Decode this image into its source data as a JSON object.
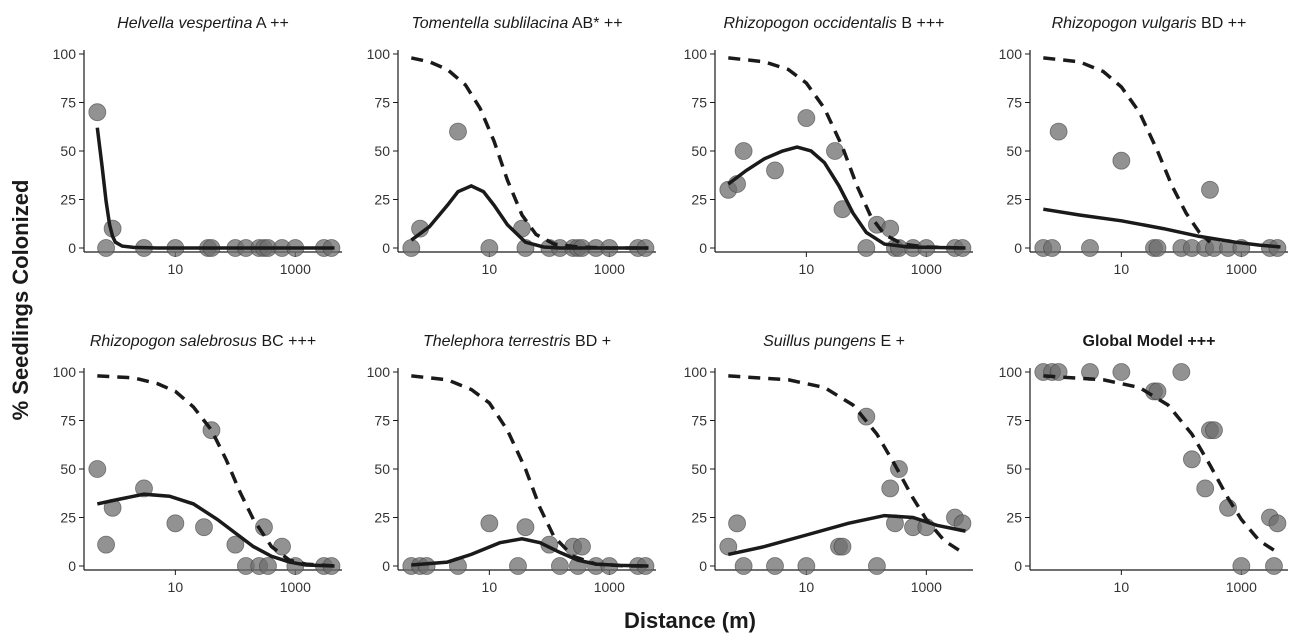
{
  "figure": {
    "ylabel": "% Seedlings Colonized",
    "xlabel": "Distance (m)",
    "colors": {
      "points": "#6e6e6e",
      "curves": "#1a1a1a",
      "axis": "#1a1a1a"
    }
  },
  "chart_data": [
    {
      "type": "scatter",
      "species": "Helvella vespertina",
      "code": "A ++",
      "bold": false,
      "log_x": true,
      "xlim": [
        0.3,
        6000
      ],
      "ylim": [
        0,
        100
      ],
      "x_ticks": [
        10,
        1000
      ],
      "x_tick_labels": [
        "10",
        "1000"
      ],
      "y_ticks": [
        0,
        25,
        50,
        75,
        100
      ],
      "y_tick_labels": [
        "0",
        "25",
        "50",
        "75",
        "100"
      ],
      "points": [
        [
          0.5,
          70
        ],
        [
          0.7,
          0
        ],
        [
          0.9,
          10
        ],
        [
          3,
          0
        ],
        [
          10,
          0
        ],
        [
          35,
          0
        ],
        [
          40,
          0
        ],
        [
          100,
          0
        ],
        [
          150,
          0
        ],
        [
          250,
          0
        ],
        [
          300,
          0
        ],
        [
          350,
          0
        ],
        [
          600,
          0
        ],
        [
          1000,
          0
        ],
        [
          3000,
          0
        ],
        [
          4000,
          0
        ]
      ],
      "solid_curve": [
        [
          0.5,
          62
        ],
        [
          0.6,
          42
        ],
        [
          0.7,
          24
        ],
        [
          0.8,
          12
        ],
        [
          0.9,
          6
        ],
        [
          1,
          3
        ],
        [
          1.3,
          1
        ],
        [
          2,
          0.3
        ],
        [
          5,
          0
        ],
        [
          4500,
          0
        ]
      ],
      "dashed_curve": []
    },
    {
      "type": "scatter",
      "species": "Tomentella sublilacina",
      "code": "AB* ++",
      "bold": false,
      "log_x": true,
      "xlim": [
        0.3,
        6000
      ],
      "ylim": [
        0,
        100
      ],
      "x_ticks": [
        10,
        1000
      ],
      "x_tick_labels": [
        "10",
        "1000"
      ],
      "y_ticks": [
        0,
        25,
        50,
        75,
        100
      ],
      "y_tick_labels": [
        "0",
        "25",
        "50",
        "75",
        "100"
      ],
      "points": [
        [
          0.5,
          0
        ],
        [
          0.7,
          10
        ],
        [
          3,
          60
        ],
        [
          10,
          0
        ],
        [
          35,
          10
        ],
        [
          40,
          0
        ],
        [
          100,
          0
        ],
        [
          150,
          0
        ],
        [
          250,
          0
        ],
        [
          300,
          0
        ],
        [
          350,
          0
        ],
        [
          600,
          0
        ],
        [
          1000,
          0
        ],
        [
          3000,
          0
        ],
        [
          4000,
          0
        ]
      ],
      "solid_curve": [
        [
          0.5,
          4
        ],
        [
          1,
          11
        ],
        [
          2,
          22
        ],
        [
          3,
          29
        ],
        [
          5,
          32
        ],
        [
          8,
          29
        ],
        [
          12,
          22
        ],
        [
          20,
          12
        ],
        [
          40,
          3
        ],
        [
          80,
          0.5
        ],
        [
          150,
          0
        ],
        [
          4500,
          0
        ]
      ],
      "dashed_curve": [
        [
          0.5,
          98
        ],
        [
          1,
          96
        ],
        [
          2,
          92
        ],
        [
          4,
          84
        ],
        [
          7,
          72
        ],
        [
          12,
          55
        ],
        [
          20,
          35
        ],
        [
          35,
          17
        ],
        [
          60,
          7
        ],
        [
          120,
          2
        ],
        [
          300,
          0.5
        ],
        [
          1000,
          0
        ],
        [
          4500,
          0
        ]
      ]
    },
    {
      "type": "scatter",
      "species": "Rhizopogon occidentalis",
      "code": "B +++",
      "bold": false,
      "log_x": true,
      "xlim": [
        0.3,
        6000
      ],
      "ylim": [
        0,
        100
      ],
      "x_ticks": [
        10,
        1000
      ],
      "x_tick_labels": [
        "10",
        "1000"
      ],
      "y_ticks": [
        0,
        25,
        50,
        75,
        100
      ],
      "y_tick_labels": [
        "0",
        "25",
        "50",
        "75",
        "100"
      ],
      "points": [
        [
          0.5,
          30
        ],
        [
          0.7,
          33
        ],
        [
          0.9,
          50
        ],
        [
          3,
          40
        ],
        [
          10,
          67
        ],
        [
          30,
          50
        ],
        [
          40,
          20
        ],
        [
          100,
          0
        ],
        [
          150,
          12
        ],
        [
          250,
          10
        ],
        [
          300,
          0
        ],
        [
          350,
          0
        ],
        [
          600,
          0
        ],
        [
          1000,
          0
        ],
        [
          3000,
          0
        ],
        [
          4000,
          0
        ]
      ],
      "solid_curve": [
        [
          0.5,
          33
        ],
        [
          1,
          40
        ],
        [
          2,
          46
        ],
        [
          4,
          50
        ],
        [
          7,
          52
        ],
        [
          12,
          50
        ],
        [
          20,
          44
        ],
        [
          35,
          32
        ],
        [
          60,
          18
        ],
        [
          100,
          8
        ],
        [
          200,
          2
        ],
        [
          500,
          0.5
        ],
        [
          4500,
          0
        ]
      ],
      "dashed_curve": [
        [
          0.5,
          98
        ],
        [
          2,
          96
        ],
        [
          5,
          92
        ],
        [
          10,
          85
        ],
        [
          20,
          72
        ],
        [
          40,
          52
        ],
        [
          70,
          32
        ],
        [
          120,
          16
        ],
        [
          200,
          7
        ],
        [
          400,
          2
        ],
        [
          1000,
          0.5
        ],
        [
          4500,
          0
        ]
      ]
    },
    {
      "type": "scatter",
      "species": "Rhizopogon vulgaris",
      "code": "BD ++",
      "bold": false,
      "log_x": true,
      "xlim": [
        0.3,
        6000
      ],
      "ylim": [
        0,
        100
      ],
      "x_ticks": [
        10,
        1000
      ],
      "x_tick_labels": [
        "10",
        "1000"
      ],
      "y_ticks": [
        0,
        25,
        50,
        75,
        100
      ],
      "y_tick_labels": [
        "0",
        "25",
        "50",
        "75",
        "100"
      ],
      "points": [
        [
          0.5,
          0
        ],
        [
          0.7,
          0
        ],
        [
          0.9,
          60
        ],
        [
          3,
          0
        ],
        [
          10,
          45
        ],
        [
          35,
          0
        ],
        [
          40,
          0
        ],
        [
          100,
          0
        ],
        [
          150,
          0
        ],
        [
          250,
          0
        ],
        [
          300,
          30
        ],
        [
          350,
          0
        ],
        [
          600,
          0
        ],
        [
          1000,
          0
        ],
        [
          3000,
          0
        ],
        [
          4000,
          0
        ]
      ],
      "solid_curve": [
        [
          0.5,
          20
        ],
        [
          2,
          17
        ],
        [
          10,
          14
        ],
        [
          50,
          10
        ],
        [
          200,
          6
        ],
        [
          800,
          3
        ],
        [
          2000,
          1.5
        ],
        [
          4500,
          0.5
        ]
      ],
      "dashed_curve": [
        [
          0.5,
          98
        ],
        [
          2,
          96
        ],
        [
          5,
          91
        ],
        [
          10,
          83
        ],
        [
          20,
          70
        ],
        [
          40,
          50
        ],
        [
          70,
          32
        ],
        [
          120,
          18
        ],
        [
          200,
          8
        ],
        [
          300,
          3
        ]
      ]
    },
    {
      "type": "scatter",
      "species": "Rhizopogon salebrosus",
      "code": "BC +++",
      "bold": false,
      "log_x": true,
      "xlim": [
        0.3,
        6000
      ],
      "ylim": [
        0,
        100
      ],
      "x_ticks": [
        10,
        1000
      ],
      "x_tick_labels": [
        "10",
        "1000"
      ],
      "y_ticks": [
        0,
        25,
        50,
        75,
        100
      ],
      "y_tick_labels": [
        "0",
        "25",
        "50",
        "75",
        "100"
      ],
      "points": [
        [
          0.5,
          50
        ],
        [
          0.7,
          11
        ],
        [
          0.9,
          30
        ],
        [
          3,
          40
        ],
        [
          10,
          22
        ],
        [
          30,
          20
        ],
        [
          40,
          70
        ],
        [
          100,
          11
        ],
        [
          150,
          0
        ],
        [
          250,
          0
        ],
        [
          300,
          20
        ],
        [
          350,
          0
        ],
        [
          600,
          10
        ],
        [
          1000,
          0
        ],
        [
          3000,
          0
        ],
        [
          4000,
          0
        ]
      ],
      "solid_curve": [
        [
          0.5,
          32
        ],
        [
          1,
          34
        ],
        [
          3,
          37
        ],
        [
          8,
          36
        ],
        [
          20,
          32
        ],
        [
          50,
          24
        ],
        [
          100,
          17
        ],
        [
          200,
          10
        ],
        [
          400,
          5
        ],
        [
          800,
          2
        ],
        [
          1500,
          0.5
        ],
        [
          4500,
          0
        ]
      ],
      "dashed_curve": [
        [
          0.5,
          98
        ],
        [
          2,
          97
        ],
        [
          5,
          94
        ],
        [
          10,
          90
        ],
        [
          20,
          82
        ],
        [
          40,
          70
        ],
        [
          70,
          55
        ],
        [
          120,
          38
        ],
        [
          200,
          24
        ],
        [
          400,
          10
        ],
        [
          800,
          3
        ],
        [
          1500,
          1
        ],
        [
          4500,
          0
        ]
      ]
    },
    {
      "type": "scatter",
      "species": "Thelephora terrestris",
      "code": "BD +",
      "bold": false,
      "log_x": true,
      "xlim": [
        0.3,
        6000
      ],
      "ylim": [
        0,
        100
      ],
      "x_ticks": [
        10,
        1000
      ],
      "x_tick_labels": [
        "10",
        "1000"
      ],
      "y_ticks": [
        0,
        25,
        50,
        75,
        100
      ],
      "y_tick_labels": [
        "0",
        "25",
        "50",
        "75",
        "100"
      ],
      "points": [
        [
          0.5,
          0
        ],
        [
          0.7,
          0
        ],
        [
          0.9,
          0
        ],
        [
          3,
          0
        ],
        [
          10,
          22
        ],
        [
          30,
          0
        ],
        [
          40,
          20
        ],
        [
          100,
          11
        ],
        [
          150,
          0
        ],
        [
          250,
          10
        ],
        [
          300,
          0
        ],
        [
          350,
          10
        ],
        [
          600,
          0
        ],
        [
          1000,
          0
        ],
        [
          3000,
          0
        ],
        [
          4000,
          0
        ]
      ],
      "solid_curve": [
        [
          0.5,
          0.5
        ],
        [
          2,
          2
        ],
        [
          5,
          6
        ],
        [
          15,
          12
        ],
        [
          35,
          14
        ],
        [
          70,
          12
        ],
        [
          150,
          7
        ],
        [
          300,
          3
        ],
        [
          600,
          1
        ],
        [
          1500,
          0.3
        ],
        [
          4500,
          0
        ]
      ],
      "dashed_curve": [
        [
          0.5,
          98
        ],
        [
          2,
          96
        ],
        [
          5,
          91
        ],
        [
          10,
          84
        ],
        [
          20,
          70
        ],
        [
          40,
          50
        ],
        [
          70,
          30
        ],
        [
          120,
          15
        ],
        [
          250,
          5
        ],
        [
          600,
          1
        ],
        [
          2000,
          0
        ],
        [
          4500,
          0
        ]
      ]
    },
    {
      "type": "scatter",
      "species": "Suillus pungens",
      "code": "E +",
      "bold": false,
      "log_x": true,
      "xlim": [
        0.3,
        6000
      ],
      "ylim": [
        0,
        100
      ],
      "x_ticks": [
        10,
        1000
      ],
      "x_tick_labels": [
        "10",
        "1000"
      ],
      "y_ticks": [
        0,
        25,
        50,
        75,
        100
      ],
      "y_tick_labels": [
        "0",
        "25",
        "50",
        "75",
        "100"
      ],
      "points": [
        [
          0.5,
          10
        ],
        [
          0.7,
          22
        ],
        [
          0.9,
          0
        ],
        [
          3,
          0
        ],
        [
          10,
          0
        ],
        [
          35,
          10
        ],
        [
          40,
          10
        ],
        [
          100,
          77
        ],
        [
          150,
          0
        ],
        [
          250,
          40
        ],
        [
          300,
          22
        ],
        [
          350,
          50
        ],
        [
          600,
          20
        ],
        [
          1000,
          20
        ],
        [
          3000,
          25
        ],
        [
          4000,
          22
        ]
      ],
      "solid_curve": [
        [
          0.5,
          6
        ],
        [
          2,
          10
        ],
        [
          10,
          16
        ],
        [
          50,
          22
        ],
        [
          200,
          26
        ],
        [
          600,
          25
        ],
        [
          1500,
          21
        ],
        [
          4500,
          18
        ]
      ],
      "dashed_curve": [
        [
          0.5,
          98
        ],
        [
          5,
          96
        ],
        [
          20,
          92
        ],
        [
          60,
          83
        ],
        [
          150,
          68
        ],
        [
          300,
          52
        ],
        [
          600,
          35
        ],
        [
          1000,
          24
        ],
        [
          2000,
          13
        ],
        [
          4500,
          6
        ]
      ]
    },
    {
      "type": "scatter",
      "species": "",
      "code": "Global Model +++",
      "bold": true,
      "log_x": true,
      "xlim": [
        0.3,
        6000
      ],
      "ylim": [
        0,
        100
      ],
      "x_ticks": [
        10,
        1000
      ],
      "x_tick_labels": [
        "10",
        "1000"
      ],
      "y_ticks": [
        0,
        25,
        50,
        75,
        100
      ],
      "y_tick_labels": [
        "0",
        "25",
        "50",
        "75",
        "100"
      ],
      "points": [
        [
          0.5,
          100
        ],
        [
          0.7,
          100
        ],
        [
          0.9,
          100
        ],
        [
          3,
          100
        ],
        [
          10,
          100
        ],
        [
          35,
          90
        ],
        [
          40,
          90
        ],
        [
          100,
          100
        ],
        [
          150,
          55
        ],
        [
          250,
          40
        ],
        [
          300,
          70
        ],
        [
          350,
          70
        ],
        [
          600,
          30
        ],
        [
          1000,
          0
        ],
        [
          3000,
          25
        ],
        [
          4000,
          22
        ],
        [
          3500,
          0
        ]
      ],
      "solid_curve": [],
      "dashed_curve": [
        [
          0.5,
          98
        ],
        [
          5,
          96
        ],
        [
          20,
          92
        ],
        [
          60,
          83
        ],
        [
          150,
          68
        ],
        [
          300,
          52
        ],
        [
          600,
          35
        ],
        [
          1000,
          24
        ],
        [
          2000,
          13
        ],
        [
          4500,
          6
        ]
      ]
    }
  ]
}
